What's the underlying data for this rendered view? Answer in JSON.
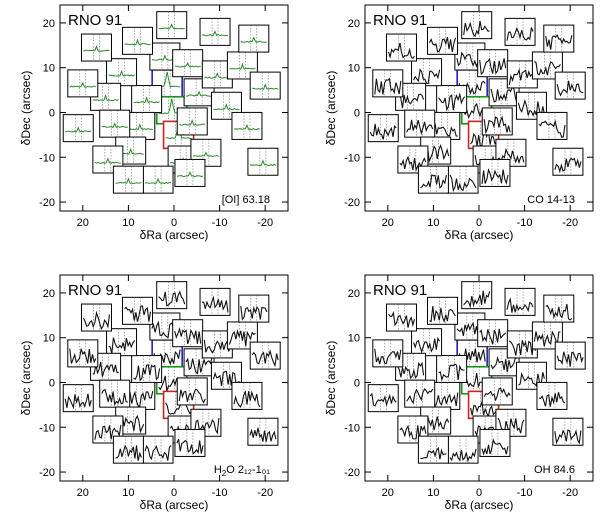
{
  "chart_data": [
    {
      "type": "spectral-footprint-map",
      "source": "RNO 91",
      "line_label": "[OI] 63.18",
      "line_sub": "",
      "line_tail": "",
      "xlabel": "δRa (arcsec)",
      "ylabel": "δDec (arcsec)",
      "xlim": [
        25,
        -25
      ],
      "ylim": [
        -22,
        24
      ],
      "xticks": [
        20,
        10,
        0,
        -10,
        -20
      ],
      "yticks": [
        -20,
        -10,
        0,
        10,
        20
      ],
      "central_spaxel_profile": "strong-peak",
      "spaxel_profile": "flat-weak-peak"
    },
    {
      "type": "spectral-footprint-map",
      "source": "RNO 91",
      "line_label": "CO 14-13",
      "line_sub": "",
      "line_tail": "",
      "xlabel": "δRa (arcsec)",
      "ylabel": "δDec (arcsec)",
      "xlim": [
        25,
        -25
      ],
      "ylim": [
        -22,
        24
      ],
      "xticks": [
        20,
        10,
        0,
        -10,
        -20
      ],
      "yticks": [
        -20,
        -10,
        0,
        10,
        20
      ],
      "central_spaxel_profile": "peak",
      "spaxel_profile": "noise"
    },
    {
      "type": "spectral-footprint-map",
      "source": "RNO 91",
      "line_label": "H",
      "line_sub": "2",
      "line_tail": "O 2₁₂-1₀₁",
      "xlabel": "δRa (arcsec)",
      "ylabel": "δDec (arcsec)",
      "xlim": [
        25,
        -25
      ],
      "ylim": [
        -22,
        24
      ],
      "xticks": [
        20,
        10,
        0,
        -10,
        -20
      ],
      "yticks": [
        -20,
        -10,
        0,
        10,
        20
      ],
      "central_spaxel_profile": "noise",
      "spaxel_profile": "noise"
    },
    {
      "type": "spectral-footprint-map",
      "source": "RNO 91",
      "line_label": "OH 84.6",
      "line_sub": "",
      "line_tail": "",
      "xlabel": "δRa (arcsec)",
      "ylabel": "δDec (arcsec)",
      "xlim": [
        25,
        -25
      ],
      "ylim": [
        -22,
        24
      ],
      "xticks": [
        20,
        10,
        0,
        -10,
        -20
      ],
      "yticks": [
        -20,
        -10,
        0,
        10,
        20
      ],
      "central_spaxel_profile": "weak-peak",
      "spaxel_profile": "noise"
    }
  ],
  "spaxel_offsets": [
    [
      1.5,
      6.5
    ],
    [
      0.5,
      0.5
    ],
    [
      -1.0,
      -5.0
    ],
    [
      6.0,
      3.0
    ],
    [
      7.5,
      -3.0
    ],
    [
      -5.5,
      4.5
    ],
    [
      -4.0,
      -2.0
    ],
    [
      2.0,
      12.5
    ],
    [
      -2.0,
      -10.5
    ],
    [
      11.5,
      9.0
    ],
    [
      -3.0,
      11.0
    ],
    [
      15.0,
      3.5
    ],
    [
      13.0,
      -2.5
    ],
    [
      -9.5,
      8.5
    ],
    [
      -11.5,
      1.5
    ],
    [
      9.5,
      -8.5
    ],
    [
      -7.0,
      -9.0
    ],
    [
      14.5,
      -10.5
    ],
    [
      3.5,
      -15.0
    ],
    [
      -16.0,
      -3.0
    ],
    [
      8.0,
      16.0
    ],
    [
      -15.0,
      10.5
    ],
    [
      20.0,
      6.5
    ],
    [
      21.0,
      -3.5
    ],
    [
      -9.0,
      18.0
    ],
    [
      -20.0,
      6.0
    ],
    [
      -19.5,
      -11.0
    ],
    [
      17.0,
      14.5
    ],
    [
      0.5,
      19.5
    ],
    [
      -3.5,
      -13.5
    ],
    [
      10.0,
      -15.0
    ],
    [
      -17.5,
      16.5
    ]
  ],
  "highlight_colors": {
    "north": "#2222bb",
    "center": "#119911",
    "south": "#cc2222"
  },
  "emission_color": "#2a8a2a"
}
